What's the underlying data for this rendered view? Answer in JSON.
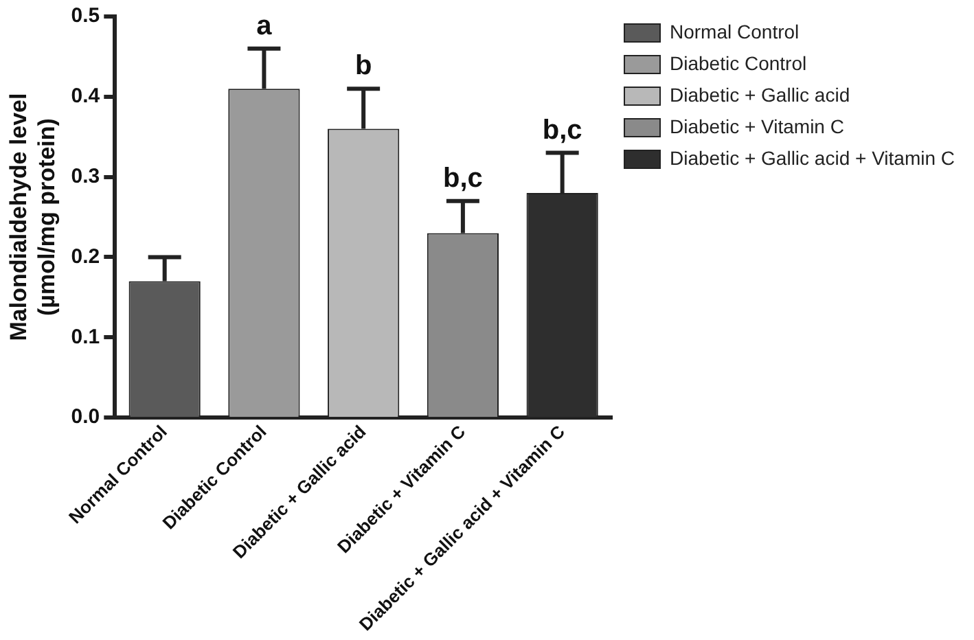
{
  "chart_data": {
    "type": "bar",
    "ylabel": "Malondialdehyde level\n(µmol/mg protein)",
    "categories": [
      "Normal Control",
      "Diabetic Control",
      "Diabetic + Gallic acid",
      "Diabetic + Vitamin C",
      "Diabetic + Gallic acid + Vitamin C"
    ],
    "series": [
      {
        "name": "Normal Control",
        "color": "#5a5a5a",
        "values": [
          0.17,
          null,
          null,
          null,
          null
        ],
        "errors": [
          0.03,
          null,
          null,
          null,
          null
        ]
      },
      {
        "name": "Diabetic Control",
        "color": "#9a9a9a",
        "values": [
          null,
          0.41,
          null,
          null,
          null
        ],
        "errors": [
          null,
          0.05,
          null,
          null,
          null
        ]
      },
      {
        "name": "Diabetic + Gallic acid",
        "color": "#b8b8b8",
        "values": [
          null,
          null,
          0.36,
          null,
          null
        ],
        "errors": [
          null,
          null,
          0.05,
          null,
          null
        ]
      },
      {
        "name": "Diabetic + Vitamin C",
        "color": "#8a8a8a",
        "values": [
          null,
          null,
          null,
          0.23,
          null
        ],
        "errors": [
          null,
          null,
          null,
          0.04,
          null
        ]
      },
      {
        "name": "Diabetic + Gallic acid + Vitamin C",
        "color": "#2e2e2e",
        "values": [
          null,
          null,
          null,
          null,
          0.28
        ],
        "errors": [
          null,
          null,
          null,
          null,
          0.05
        ]
      }
    ],
    "ylim": [
      0,
      0.5
    ],
    "yticks": [
      {
        "value": 0,
        "label": "0.0"
      },
      0.1,
      0.2,
      0.3,
      0.4,
      0.5
    ],
    "annotations": [
      {
        "text": "a",
        "x": "Diabetic Control",
        "y": 0.46
      },
      {
        "text": "b",
        "x": "Diabetic + Gallic acid",
        "y": 0.41
      },
      {
        "text": "b,c",
        "x": "Diabetic + Vitamin C",
        "y": 0.27
      },
      {
        "text": "b,c",
        "x": "Diabetic + Gallic acid + Vitamin C",
        "y": 0.33
      }
    ],
    "grid": false,
    "legend": "top right"
  }
}
